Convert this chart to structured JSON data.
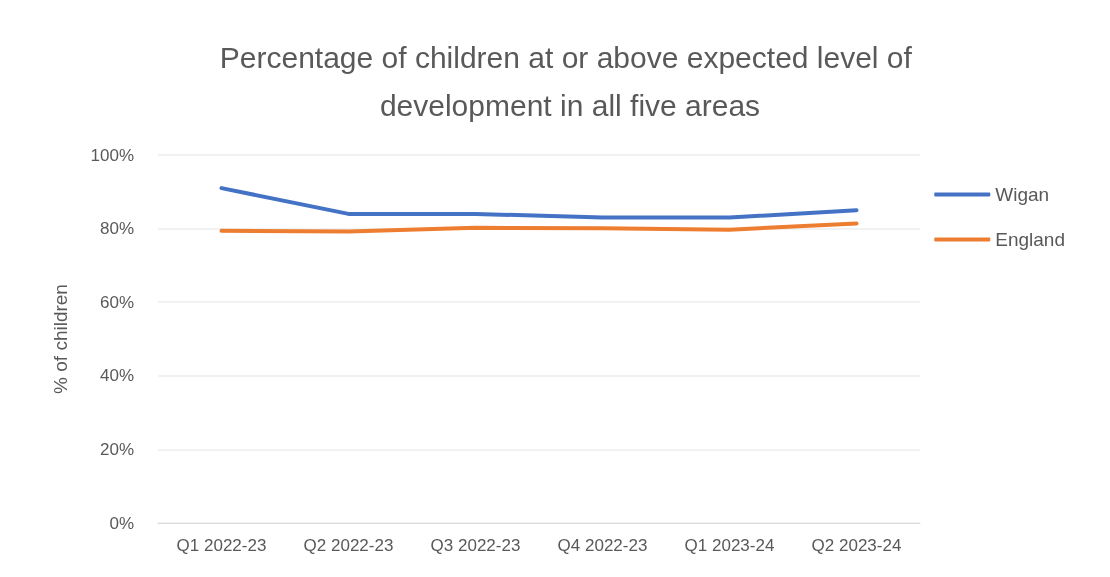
{
  "chart_data": {
    "type": "line",
    "title": "Percentage of children at or above expected level of development in all five areas",
    "ylabel": "% of children",
    "categories": [
      "Q1 2022-23",
      "Q2 2022-23",
      "Q3 2022-23",
      "Q4 2022-23",
      "Q1 2023-24",
      "Q2 2023-24"
    ],
    "series": [
      {
        "name": "Wigan",
        "color": "#4472c4",
        "values": [
          91,
          84,
          84,
          83,
          83,
          85
        ]
      },
      {
        "name": "England",
        "color": "#ed7d31",
        "values": [
          79.4,
          79.2,
          80.2,
          80.1,
          79.7,
          81.4
        ]
      }
    ],
    "ylim": [
      0,
      100
    ],
    "yticks": [
      {
        "value": 0,
        "label": "0%"
      },
      {
        "value": 20,
        "label": "20%"
      },
      {
        "value": 40,
        "label": "40%"
      },
      {
        "value": 60,
        "label": "60%"
      },
      {
        "value": 80,
        "label": "80%"
      },
      {
        "value": 100,
        "label": "100%"
      }
    ],
    "grid": "y",
    "legend": "right",
    "marker": "none",
    "line_style": "solid"
  }
}
